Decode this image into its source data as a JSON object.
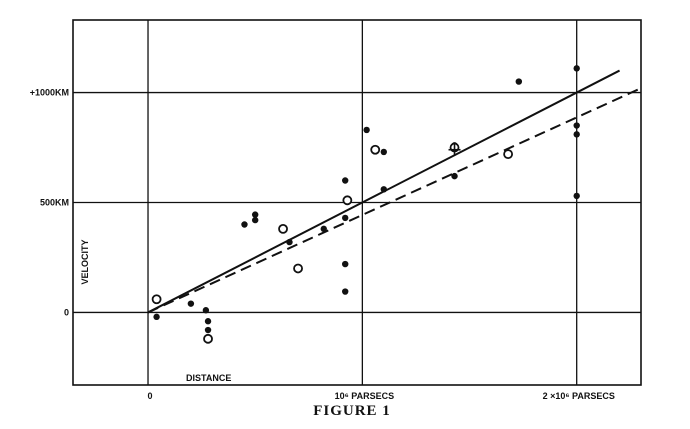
{
  "chart_data": {
    "type": "scatter",
    "caption": "FIGURE 1",
    "xlabel": "DISTANCE",
    "ylabel": "VELOCITY",
    "xlim": [
      -0.35,
      2.3
    ],
    "ylim": [
      -330,
      1330
    ],
    "x_ticks": [
      {
        "value": 0,
        "label": "0"
      },
      {
        "value": 1,
        "label": "10⁶ PARSECS"
      },
      {
        "value": 2,
        "label": "2 ×10⁶ PARSECS"
      }
    ],
    "y_ticks": [
      {
        "value": 0,
        "label": "0"
      },
      {
        "value": 500,
        "label": "500KM"
      },
      {
        "value": 1000,
        "label": "+1000KM"
      }
    ],
    "grid": true,
    "series": [
      {
        "marker": "filled-circle",
        "points": [
          [
            0.04,
            -20
          ],
          [
            0.2,
            40
          ],
          [
            0.27,
            10
          ],
          [
            0.28,
            -40
          ],
          [
            0.28,
            -80
          ],
          [
            0.45,
            400
          ],
          [
            0.5,
            420
          ],
          [
            0.5,
            445
          ],
          [
            0.66,
            320
          ],
          [
            0.82,
            380
          ],
          [
            0.92,
            600
          ],
          [
            0.92,
            430
          ],
          [
            0.92,
            220
          ],
          [
            0.92,
            95
          ],
          [
            1.02,
            830
          ],
          [
            1.1,
            730
          ],
          [
            1.1,
            560
          ],
          [
            1.43,
            620
          ],
          [
            1.43,
            760
          ],
          [
            1.73,
            1050
          ],
          [
            2.0,
            1110
          ],
          [
            2.0,
            850
          ],
          [
            2.0,
            810
          ],
          [
            2.0,
            530
          ]
        ]
      },
      {
        "marker": "open-circle",
        "points": [
          [
            0.04,
            60
          ],
          [
            0.28,
            -120
          ],
          [
            0.63,
            380
          ],
          [
            0.7,
            200
          ],
          [
            0.93,
            510
          ],
          [
            1.06,
            740
          ],
          [
            1.43,
            750
          ],
          [
            1.68,
            720
          ]
        ]
      }
    ],
    "lines": [
      {
        "style": "solid",
        "from": [
          0,
          0
        ],
        "to": [
          2.2,
          1100
        ]
      },
      {
        "style": "dashed",
        "from": [
          0,
          0
        ],
        "to": [
          2.3,
          1020
        ]
      }
    ],
    "annotations": [
      {
        "type": "cross",
        "x": 1.43,
        "y": 740
      }
    ]
  }
}
